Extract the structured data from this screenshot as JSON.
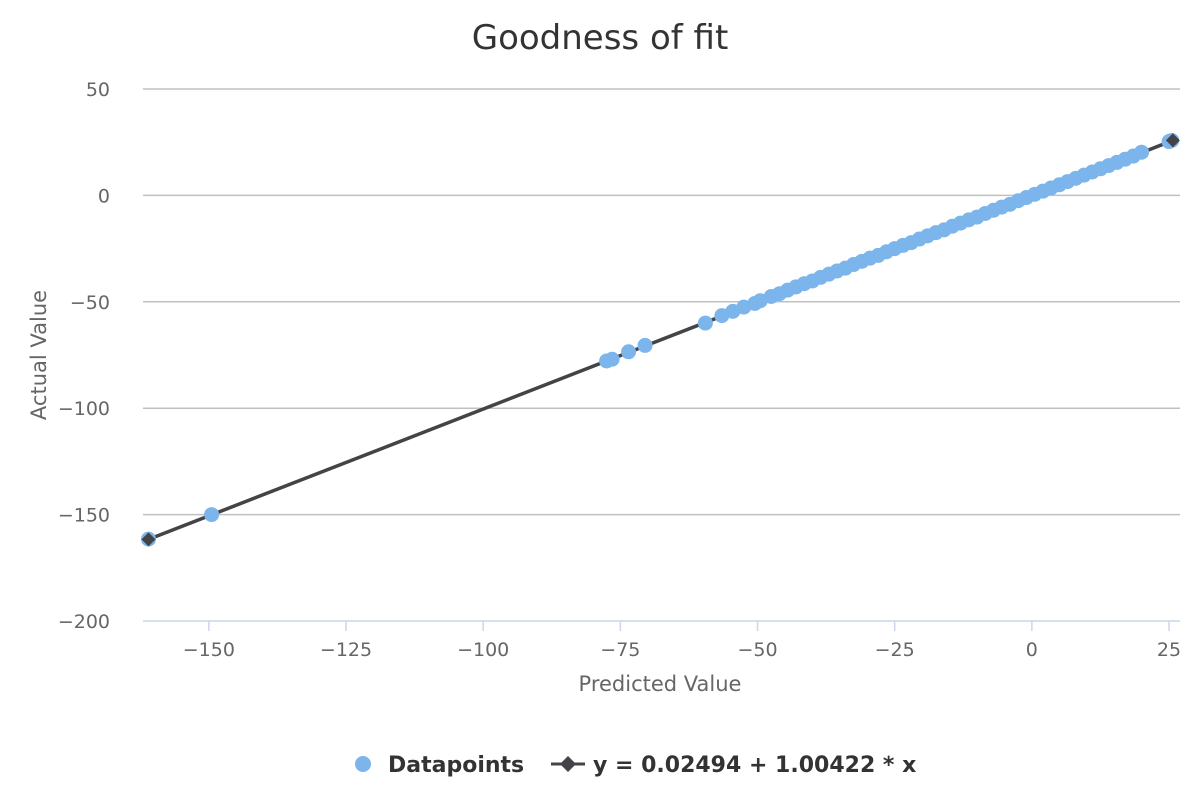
{
  "chart_data": {
    "type": "scatter",
    "title": "Goodness of fit",
    "xlabel": "Predicted Value",
    "ylabel": "Actual Value",
    "xlim": [
      -162,
      27
    ],
    "ylim": [
      -200,
      50
    ],
    "x_ticks": [
      -150,
      -125,
      -100,
      -75,
      -50,
      -25,
      0,
      25
    ],
    "y_ticks": [
      -200,
      -150,
      -100,
      -50,
      0,
      50
    ],
    "x_tick_labels": [
      "−150",
      "−125",
      "−100",
      "−75",
      "−50",
      "−25",
      "0",
      "25"
    ],
    "y_tick_labels": [
      "−200",
      "−150",
      "−100",
      "−50",
      "0",
      "50"
    ],
    "grid": "horizontal",
    "legend_position": "bottom-center",
    "colors": {
      "datapoints": "#7cb5ec",
      "fit_line": "#434348",
      "grid": "#c0c0c0",
      "axis": "#ccd6eb"
    },
    "series": [
      {
        "name": "Datapoints",
        "kind": "scatter",
        "points": [
          [
            -161,
            -161.5
          ],
          [
            -149.5,
            -150
          ],
          [
            -77.5,
            -77.8
          ],
          [
            -76.5,
            -77
          ],
          [
            -73.5,
            -73.5
          ],
          [
            -70.5,
            -70.5
          ],
          [
            -59.5,
            -60
          ],
          [
            -56.5,
            -56.5
          ],
          [
            -54.5,
            -54.5
          ],
          [
            -52.5,
            -52.5
          ],
          [
            -50.5,
            -50.8
          ],
          [
            -49.5,
            -49.5
          ],
          [
            -47.5,
            -47.5
          ],
          [
            -46,
            -46.2
          ],
          [
            -44.5,
            -44.5
          ],
          [
            -43,
            -43
          ],
          [
            -41.5,
            -41.5
          ],
          [
            -40,
            -40.2
          ],
          [
            -38.5,
            -38.5
          ],
          [
            -37,
            -37
          ],
          [
            -35.5,
            -35.5
          ],
          [
            -34,
            -34.2
          ],
          [
            -32.5,
            -32.5
          ],
          [
            -31,
            -31
          ],
          [
            -29.5,
            -29.5
          ],
          [
            -28,
            -28.2
          ],
          [
            -26.5,
            -26.5
          ],
          [
            -25,
            -25
          ],
          [
            -23.5,
            -23.5
          ],
          [
            -22,
            -22.2
          ],
          [
            -20.5,
            -20.5
          ],
          [
            -19,
            -19
          ],
          [
            -17.5,
            -17.5
          ],
          [
            -16,
            -16.2
          ],
          [
            -14.5,
            -14.5
          ],
          [
            -13,
            -13
          ],
          [
            -11.5,
            -11.5
          ],
          [
            -10,
            -10.2
          ],
          [
            -8.5,
            -8.5
          ],
          [
            -7,
            -7
          ],
          [
            -5.5,
            -5.5
          ],
          [
            -4,
            -4.2
          ],
          [
            -2.5,
            -2.5
          ],
          [
            -1,
            -1
          ],
          [
            0.5,
            0.5
          ],
          [
            2,
            2
          ],
          [
            3.5,
            3.5
          ],
          [
            5,
            5
          ],
          [
            6.5,
            6.5
          ],
          [
            8,
            8
          ],
          [
            9.5,
            9.5
          ],
          [
            11,
            11
          ],
          [
            12.5,
            12.5
          ],
          [
            14,
            14
          ],
          [
            15.5,
            15.5
          ],
          [
            17,
            17
          ],
          [
            18.5,
            18.5
          ],
          [
            20,
            20.3
          ],
          [
            25,
            25.3
          ],
          [
            25.5,
            25.8
          ]
        ]
      },
      {
        "name": "y = 0.02494 + 1.00422 * x",
        "kind": "line",
        "points": [
          [
            -161,
            -161.65
          ],
          [
            25.7,
            25.83
          ]
        ]
      }
    ]
  }
}
